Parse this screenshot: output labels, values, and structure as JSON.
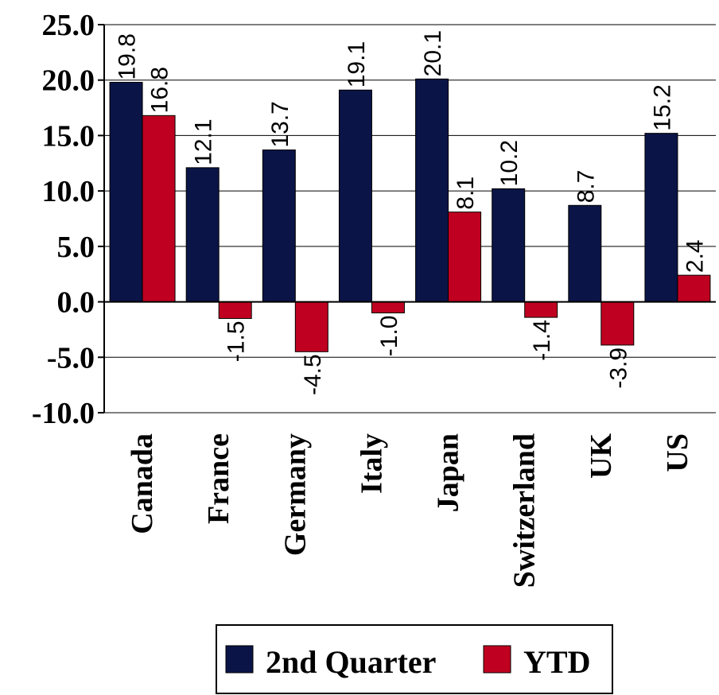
{
  "chart_data": {
    "type": "bar",
    "categories": [
      "Canada",
      "France",
      "Germany",
      "Italy",
      "Japan",
      "Switzerland",
      "UK",
      "US"
    ],
    "series": [
      {
        "name": "2nd Quarter",
        "color": "#0b1446",
        "values": [
          19.8,
          12.1,
          13.7,
          19.1,
          20.1,
          10.2,
          8.7,
          15.2
        ]
      },
      {
        "name": "YTD",
        "color": "#c00020",
        "values": [
          16.8,
          -1.5,
          -4.5,
          -1.0,
          8.1,
          -1.4,
          -3.9,
          2.4
        ]
      }
    ],
    "yticks": [
      "25.0",
      "20.0",
      "15.0",
      "10.0",
      "5.0",
      "0.0",
      "-5.0",
      "-10.0"
    ],
    "ylim": [
      -10,
      25
    ],
    "grid": true,
    "legend_position": "bottom"
  }
}
